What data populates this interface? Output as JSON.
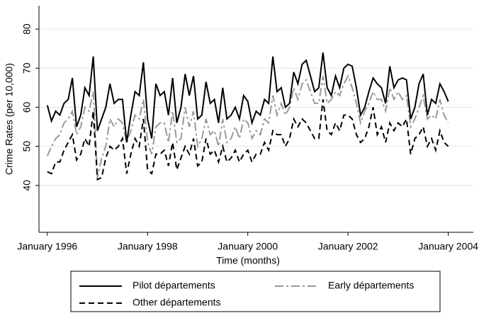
{
  "chart_data": {
    "type": "line",
    "ylabel": "Crime Rates (per 10,000)",
    "xlabel": "Time (months)",
    "x": [
      "1996-01",
      "1996-02",
      "1996-03",
      "1996-04",
      "1996-05",
      "1996-06",
      "1996-07",
      "1996-08",
      "1996-09",
      "1996-10",
      "1996-11",
      "1996-12",
      "1997-01",
      "1997-02",
      "1997-03",
      "1997-04",
      "1997-05",
      "1997-06",
      "1997-07",
      "1997-08",
      "1997-09",
      "1997-10",
      "1997-11",
      "1997-12",
      "1998-01",
      "1998-02",
      "1998-03",
      "1998-04",
      "1998-05",
      "1998-06",
      "1998-07",
      "1998-08",
      "1998-09",
      "1998-10",
      "1998-11",
      "1998-12",
      "1999-01",
      "1999-02",
      "1999-03",
      "1999-04",
      "1999-05",
      "1999-06",
      "1999-07",
      "1999-08",
      "1999-09",
      "1999-10",
      "1999-11",
      "1999-12",
      "2000-01",
      "2000-02",
      "2000-03",
      "2000-04",
      "2000-05",
      "2000-06",
      "2000-07",
      "2000-08",
      "2000-09",
      "2000-10",
      "2000-11",
      "2000-12",
      "2001-01",
      "2001-02",
      "2001-03",
      "2001-04",
      "2001-05",
      "2001-06",
      "2001-07",
      "2001-08",
      "2001-09",
      "2001-10",
      "2001-11",
      "2001-12",
      "2002-01",
      "2002-02",
      "2002-03",
      "2002-04",
      "2002-05",
      "2002-06",
      "2002-07",
      "2002-08",
      "2002-09",
      "2002-10",
      "2002-11",
      "2002-12",
      "2003-01",
      "2003-02",
      "2003-03",
      "2003-04",
      "2003-05",
      "2003-06",
      "2003-07",
      "2003-08",
      "2003-09",
      "2003-10",
      "2003-11",
      "2003-12",
      "2004-01"
    ],
    "series": [
      {
        "name": "Pilot départements",
        "color": "#000000",
        "dash": "solid",
        "values": [
          60.5,
          56.5,
          59,
          58,
          61,
          62,
          67.5,
          55,
          58,
          65,
          63,
          73,
          54,
          57,
          60,
          66,
          61,
          62,
          62,
          51,
          58,
          64,
          63,
          71.5,
          57,
          52,
          66,
          63,
          64,
          58,
          67.5,
          56,
          60,
          68.5,
          63,
          68,
          57,
          58,
          66.5,
          61,
          62,
          56,
          65,
          57,
          58,
          60,
          57,
          63,
          61.5,
          56,
          59,
          58,
          62,
          61,
          73,
          64,
          65,
          60,
          61,
          69,
          66,
          71,
          72,
          68,
          64,
          65,
          74,
          65,
          63,
          68,
          65,
          70,
          71,
          70.5,
          65,
          58,
          60,
          64,
          67.5,
          66,
          65,
          61,
          70.5,
          65,
          67,
          67.5,
          67,
          57,
          60,
          66,
          68.5,
          58,
          62,
          61,
          66,
          64,
          61.5
        ]
      },
      {
        "name": "Early départements",
        "color": "#999999",
        "dash": "dashdot",
        "values": [
          47.5,
          50,
          52,
          53,
          56,
          57,
          59,
          53,
          55,
          60,
          59,
          64,
          42,
          47,
          50,
          57,
          55,
          57,
          56,
          51,
          54,
          58,
          57,
          62,
          51,
          48,
          55,
          56,
          56,
          51,
          59,
          51,
          52,
          60,
          55,
          59,
          50,
          52,
          57,
          53,
          54,
          50,
          57,
          51,
          52,
          55,
          52,
          57,
          56,
          52,
          54,
          53,
          57,
          56,
          63,
          58,
          61,
          58,
          60,
          65,
          62,
          66,
          67,
          64,
          61,
          61,
          68,
          61,
          62,
          64,
          63,
          66,
          68,
          65,
          61,
          56,
          59,
          61,
          64,
          62,
          62,
          59,
          65,
          62,
          64,
          62,
          63,
          55,
          57,
          60,
          63,
          57,
          58,
          57,
          62,
          58,
          56
        ]
      },
      {
        "name": "Other départements",
        "color": "#000000",
        "dash": "dashed",
        "values": [
          43.5,
          43,
          46,
          46,
          49,
          51,
          53,
          46.5,
          48,
          52,
          50,
          59,
          41.5,
          42,
          47,
          50,
          49,
          50,
          52,
          43,
          48,
          52,
          50,
          57,
          44,
          43,
          48,
          48,
          49,
          45,
          51,
          44,
          47,
          50,
          48,
          52,
          45,
          46,
          52,
          48,
          49,
          46,
          50,
          46,
          47,
          49,
          46,
          48,
          49,
          46,
          48,
          48,
          51,
          49,
          54,
          53,
          53,
          50,
          52,
          57,
          55,
          57,
          56,
          54,
          52,
          52,
          62,
          54,
          53,
          56,
          54,
          58,
          58,
          57,
          53,
          51,
          52,
          55,
          60,
          53,
          55,
          51,
          56,
          54,
          56,
          55,
          57,
          48,
          52,
          53,
          55,
          50,
          52,
          49,
          54,
          51,
          50
        ]
      }
    ],
    "xlim": [
      "1995-11",
      "2004-07"
    ],
    "xticks": [
      {
        "value": "1996-01",
        "label": "January 1996"
      },
      {
        "value": "1998-01",
        "label": "January 1998"
      },
      {
        "value": "2000-01",
        "label": "January 2000"
      },
      {
        "value": "2002-01",
        "label": "January 2002"
      },
      {
        "value": "2004-01",
        "label": "January 2004"
      }
    ],
    "ylim": [
      28,
      86
    ],
    "yticks": [
      40,
      50,
      60,
      70,
      80
    ],
    "grid": true,
    "legend": "bottom"
  }
}
